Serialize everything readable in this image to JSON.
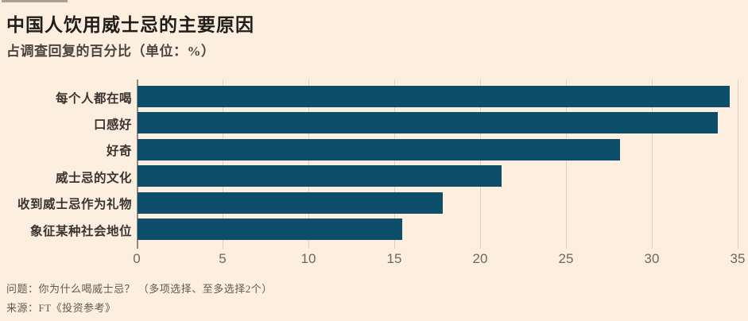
{
  "header": {
    "title": "中国人饮用威士忌的主要原因",
    "subtitle": "占调查回复的百分比（单位：%）"
  },
  "chart_data": {
    "type": "bar",
    "orientation": "horizontal",
    "title": "中国人饮用威士忌的主要原因",
    "subtitle": "占调查回复的百分比（单位：%）",
    "categories": [
      "每个人都在喝",
      "口感好",
      "好奇",
      "威士忌的文化",
      "收到威士忌作为礼物",
      "象征某种社会地位"
    ],
    "values": [
      34.5,
      33.8,
      28.1,
      21.2,
      17.8,
      15.4
    ],
    "xlabel": "",
    "ylabel": "",
    "xlim": [
      0,
      35
    ],
    "x_ticks": [
      0,
      5,
      10,
      15,
      20,
      25,
      30,
      35
    ],
    "grid": "vertical-only",
    "legend": "none",
    "bar_color": "#0d4e6b"
  },
  "footer": {
    "question": "问题：你为什么喝威士忌？ （多项选择、至多选择2个）",
    "source": "来源：FT《投资参考》"
  },
  "colors": {
    "background": "#fcefdf",
    "bar": "#0d4e6b",
    "gridline": "#ddd1c5",
    "zero_axis": "#90887e",
    "tick_label": "#6f665e",
    "accent_rule": "#a89e94",
    "title_text": "#201d1b"
  }
}
